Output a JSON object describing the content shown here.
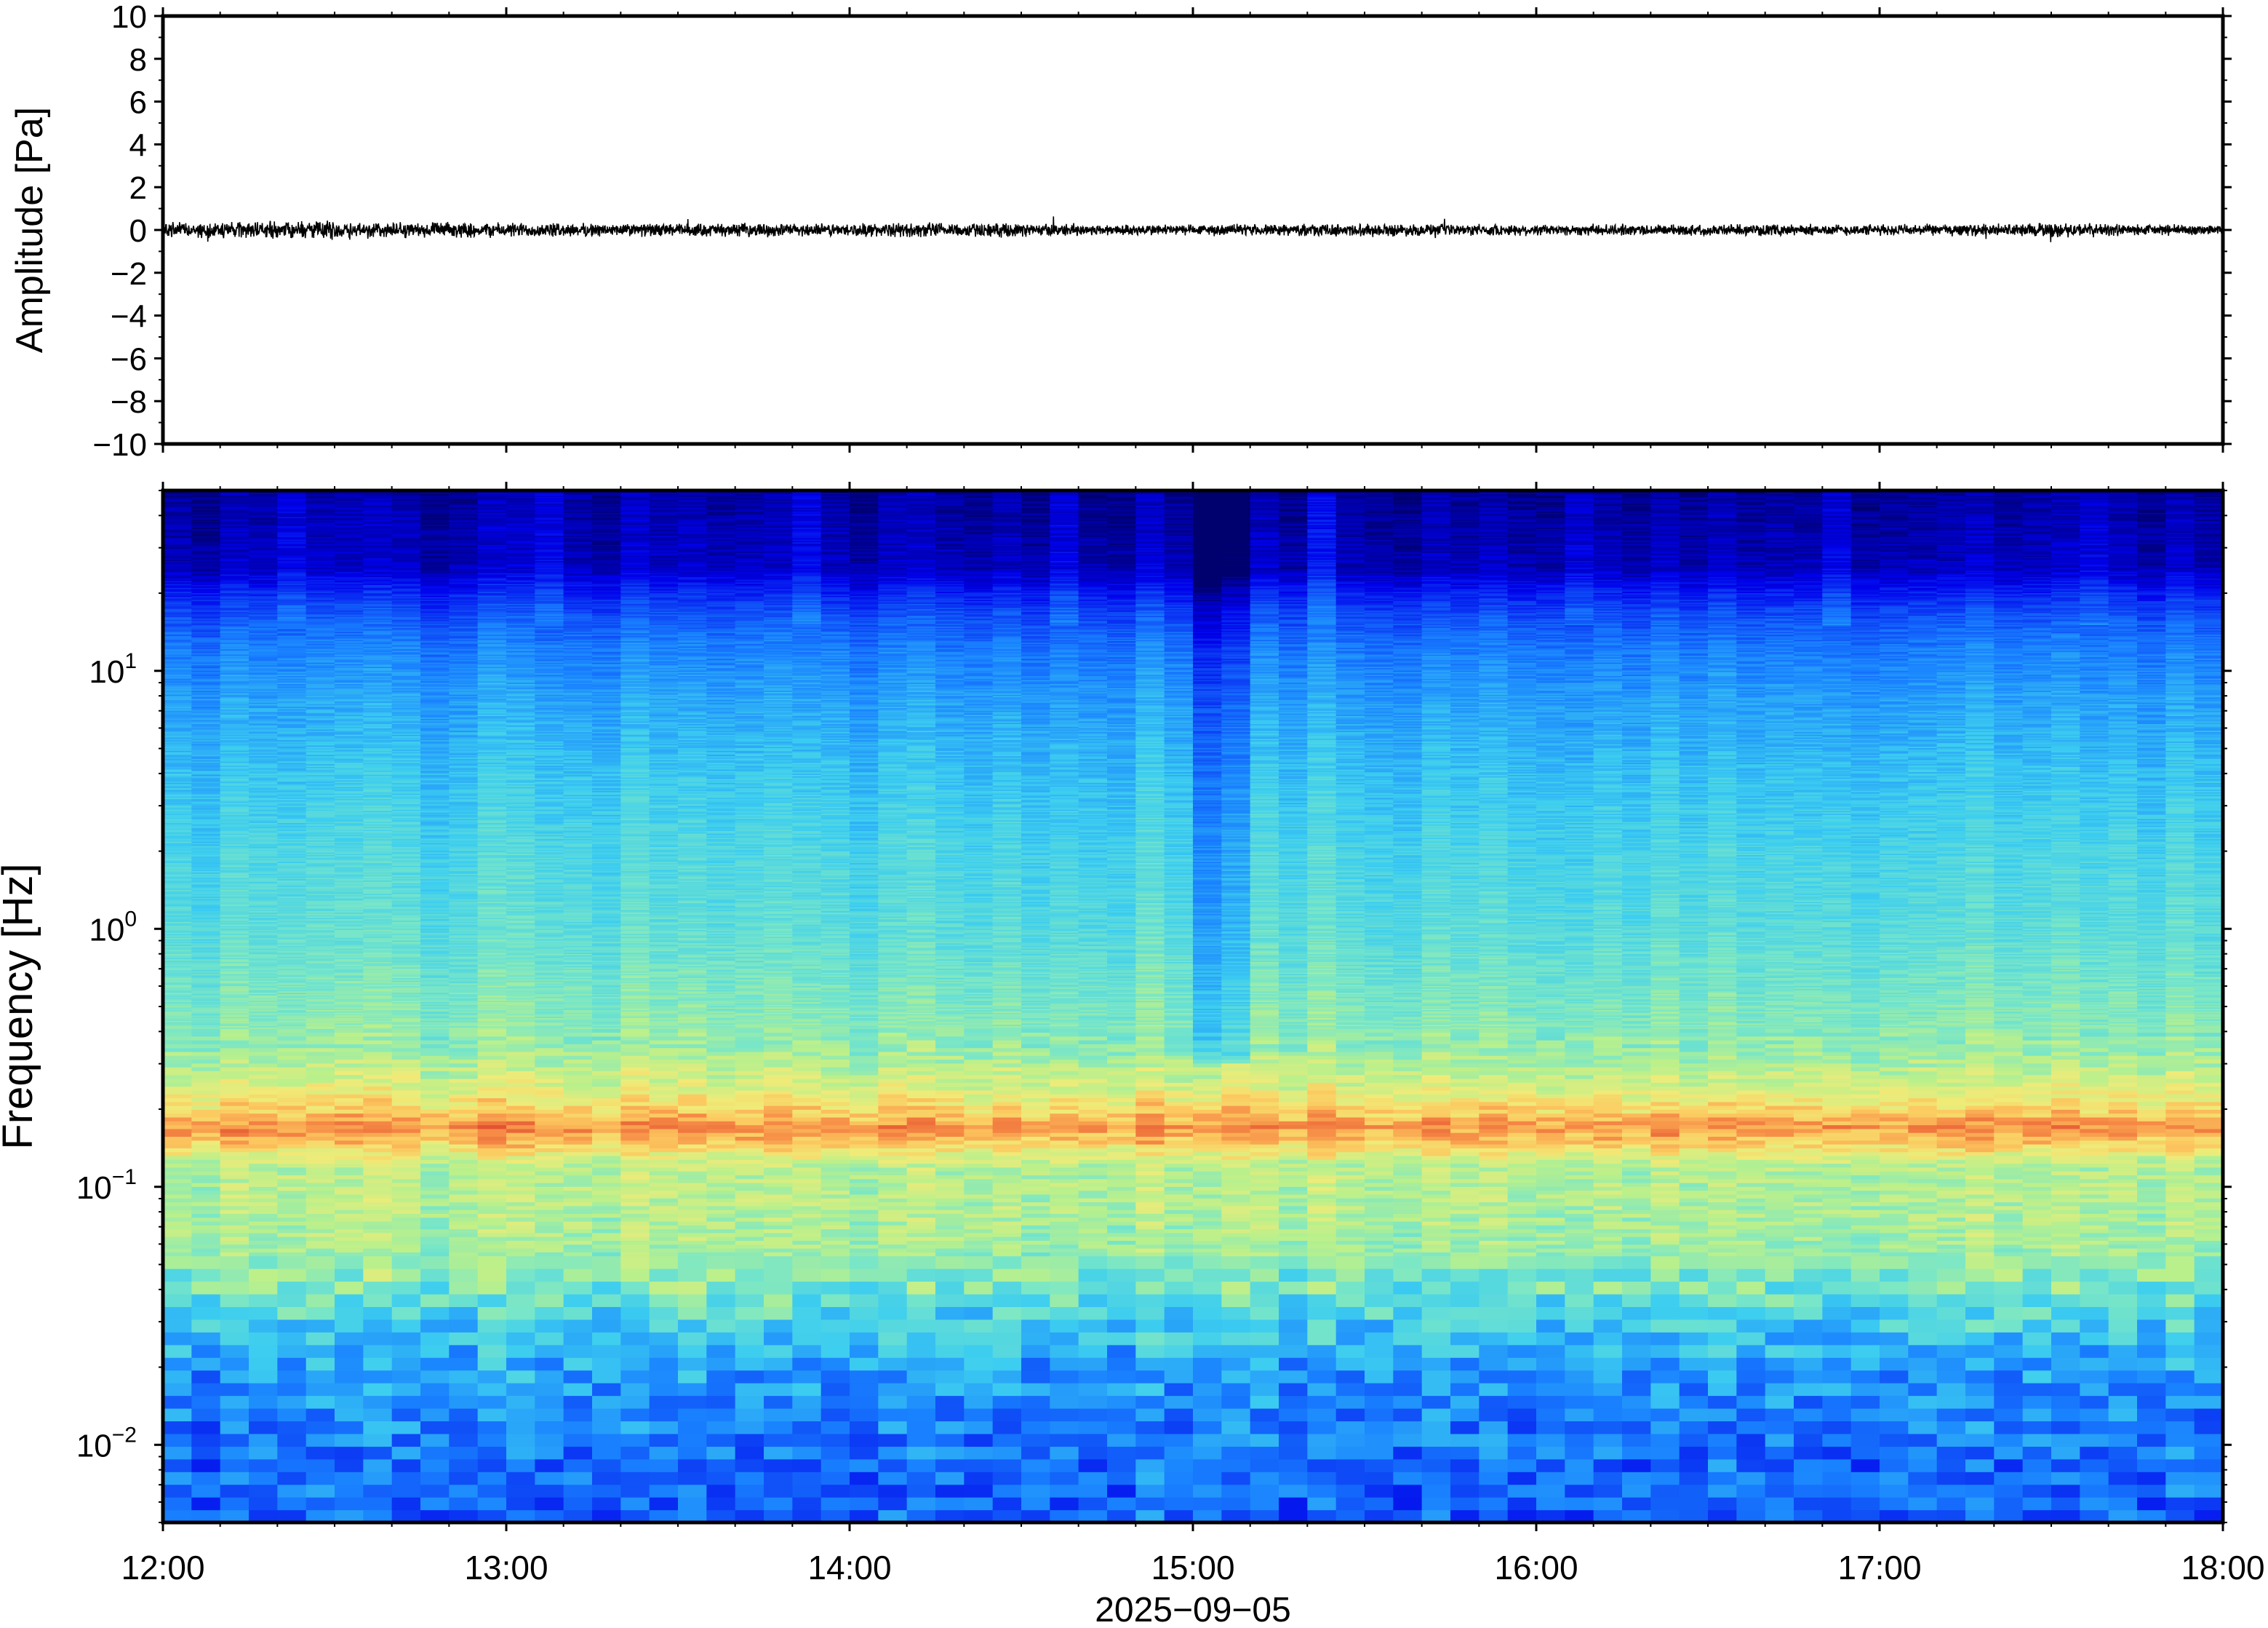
{
  "chart_data": [
    {
      "type": "line",
      "ylabel": "Amplitude [Pa]",
      "ylim": [
        -10,
        10
      ],
      "yticks": [
        10,
        8,
        6,
        4,
        2,
        0,
        -2,
        -4,
        -6,
        -8,
        -10
      ],
      "ytick_labels": [
        "10",
        "8",
        "6",
        "4",
        "2",
        "0",
        "−2",
        "−4",
        "−6",
        "−8",
        "−10"
      ],
      "xlim": [
        "12:00",
        "18:00"
      ],
      "series": [
        {
          "color": "#000000",
          "x_hours": [
            12.0,
            12.25,
            12.5,
            12.75,
            13.0,
            13.25,
            13.5,
            13.75,
            14.0,
            14.25,
            14.5,
            14.75,
            15.0,
            15.25,
            15.5,
            15.75,
            16.0,
            16.25,
            16.5,
            16.75,
            17.0,
            17.25,
            17.5,
            17.75,
            18.0
          ],
          "envelope_pa": [
            0.4,
            0.45,
            0.5,
            0.4,
            0.4,
            0.35,
            0.35,
            0.35,
            0.35,
            0.4,
            0.35,
            0.3,
            0.3,
            0.3,
            0.35,
            0.3,
            0.3,
            0.3,
            0.3,
            0.3,
            0.3,
            0.3,
            0.4,
            0.3,
            0.3
          ]
        }
      ],
      "grid": false
    },
    {
      "type": "heatmap",
      "ylabel": "Frequency [Hz]",
      "xlabel": "2025−09−05",
      "yscale": "log",
      "ylim": [
        0.005,
        50
      ],
      "yticks": [
        0.01,
        0.1,
        1,
        10
      ],
      "ytick_labels": [
        {
          "base": "10",
          "exp": "−2"
        },
        {
          "base": "10",
          "exp": "−1"
        },
        {
          "base": "10",
          "exp": "0"
        },
        {
          "base": "10",
          "exp": "1"
        }
      ],
      "xticks": [
        "12:00",
        "13:00",
        "14:00",
        "15:00",
        "16:00",
        "17:00",
        "18:00"
      ],
      "colormap": "jet",
      "time_bins": 72,
      "profile_hz": [
        0.005,
        0.008,
        0.012,
        0.02,
        0.03,
        0.04,
        0.06,
        0.09,
        0.12,
        0.15,
        0.17,
        0.2,
        0.25,
        0.35,
        0.6,
        1.0,
        2.0,
        4.0,
        8.0,
        12.0,
        16.0,
        20.0,
        25.0,
        50.0
      ],
      "profile_level": [
        0.26,
        0.27,
        0.3,
        0.35,
        0.44,
        0.52,
        0.58,
        0.6,
        0.6,
        0.74,
        0.8,
        0.72,
        0.64,
        0.56,
        0.52,
        0.48,
        0.45,
        0.41,
        0.35,
        0.3,
        0.24,
        0.17,
        0.08,
        0.05
      ],
      "features": [
        {
          "name": "microseism",
          "freq_hz": 0.17,
          "level": 0.8
        },
        {
          "name": "quiet-strip",
          "time": "15:05",
          "level_drop": 0.12
        }
      ],
      "grid": false
    }
  ]
}
